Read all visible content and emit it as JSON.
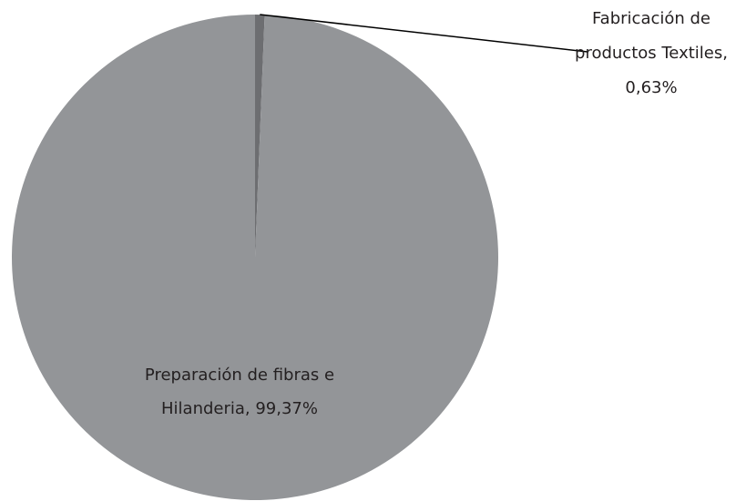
{
  "chart_data": {
    "type": "pie",
    "values": [
      0.63,
      99.37
    ],
    "value_labels": [
      "Fabricación de productos Textiles, 0,63%",
      "Preparación de fibras e Hilanderia, 99,37%"
    ],
    "colors": [
      "#6d6e71",
      "#939598"
    ]
  }
}
